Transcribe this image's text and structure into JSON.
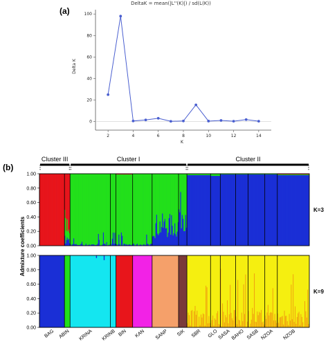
{
  "chart_data": [
    {
      "type": "line",
      "panel": "(a)",
      "title": "DeltaK = mean(|L''(K)|) / sd(L(K))",
      "xlabel": "K",
      "ylabel": "Delta K",
      "xlim": [
        1,
        15
      ],
      "ylim": [
        -8,
        104
      ],
      "x_ticks": [
        2,
        4,
        6,
        8,
        10,
        12,
        14
      ],
      "y_ticks": [
        0,
        20,
        40,
        60,
        80,
        100
      ],
      "color": "#4a5fd0",
      "x": [
        2,
        3,
        4,
        5,
        6,
        7,
        8,
        9,
        10,
        11,
        12,
        13,
        14
      ],
      "y": [
        25,
        98,
        0.5,
        1.5,
        3,
        0.2,
        0.5,
        15.5,
        0.4,
        1,
        0.3,
        1.8,
        0.3
      ]
    },
    {
      "type": "bar",
      "panel": "(b)",
      "stacked": true,
      "ylabel": "Admixture coefficients",
      "y_ticks": [
        "0.00",
        "0.20",
        "0.40",
        "0.60",
        "0.80",
        "1.00"
      ],
      "clusters": [
        "Cluster III",
        "Cluster I",
        "Cluster II"
      ],
      "populations": [
        "BAG",
        "ABIN",
        "KRINA",
        "KRINB",
        "BIN",
        "KAN",
        "SANP",
        "SIK",
        "SBR",
        "GLO",
        "SASA",
        "BAHO",
        "SASB",
        "NZOA",
        "NZOB"
      ],
      "k3": {
        "label": "K=3",
        "colors": [
          "#e8151b",
          "#22e01a",
          "#1a2fd6"
        ],
        "segments": [
          {
            "pop": "BAG",
            "red": 1.0,
            "green": 0.0,
            "blue": 0.0
          },
          {
            "pop": "ABIN",
            "red": 0.65,
            "green": 0.25,
            "blue": 0.1
          },
          {
            "pop": "KRINA",
            "red": 0.0,
            "green": 0.97,
            "blue": 0.03
          },
          {
            "pop": "KRINB",
            "red": 0.0,
            "green": 0.94,
            "blue": 0.06
          },
          {
            "pop": "BIN",
            "red": 0.01,
            "green": 0.95,
            "blue": 0.04
          },
          {
            "pop": "KAN",
            "red": 0.0,
            "green": 0.97,
            "blue": 0.03
          },
          {
            "pop": "SANP",
            "red": 0.0,
            "green": 0.75,
            "blue": 0.25
          },
          {
            "pop": "SIK",
            "red": 0.0,
            "green": 0.55,
            "blue": 0.45
          },
          {
            "pop": "SBR",
            "red": 0.0,
            "green": 0.02,
            "blue": 0.98
          },
          {
            "pop": "GLO",
            "red": 0.0,
            "green": 0.03,
            "blue": 0.97
          },
          {
            "pop": "SASA",
            "red": 0.0,
            "green": 0.01,
            "blue": 0.99
          },
          {
            "pop": "BAHO",
            "red": 0.0,
            "green": 0.01,
            "blue": 0.99
          },
          {
            "pop": "SASB",
            "red": 0.0,
            "green": 0.01,
            "blue": 0.99
          },
          {
            "pop": "NZOA",
            "red": 0.0,
            "green": 0.01,
            "blue": 0.99
          },
          {
            "pop": "NZOB",
            "red": 0.01,
            "green": 0.01,
            "blue": 0.98
          }
        ]
      },
      "k9": {
        "label": "K=9",
        "segments": [
          {
            "pop": "BAG",
            "color": "#1a2fd6"
          },
          {
            "pop": "ABIN",
            "color": "#22e01a"
          },
          {
            "pop": "KRINA",
            "color": "#14e6f0"
          },
          {
            "pop": "KRINB",
            "color": "#14e6f0"
          },
          {
            "pop": "BIN",
            "color": "#e8151b"
          },
          {
            "pop": "KAN",
            "color": "#f222e6"
          },
          {
            "pop": "SANP",
            "color": "#f5a06a"
          },
          {
            "pop": "SIK",
            "color": "#7a3a3a"
          },
          {
            "pop": "SBR",
            "color": "#f5ef10"
          },
          {
            "pop": "GLO",
            "color": "#f5ef10"
          },
          {
            "pop": "SASA",
            "color": "#f5ef10"
          },
          {
            "pop": "BAHO",
            "color": "#f5ef10"
          },
          {
            "pop": "SASB",
            "color": "#f5ef10"
          },
          {
            "pop": "NZOA",
            "color": "#f5ef10"
          },
          {
            "pop": "NZOB",
            "color": "#f5ef10"
          }
        ],
        "admixture_color": "#f0a010"
      }
    }
  ]
}
